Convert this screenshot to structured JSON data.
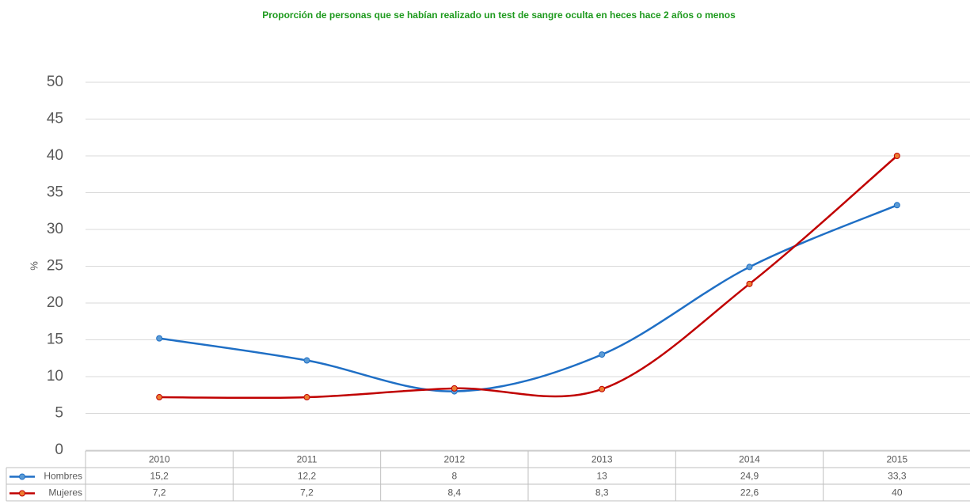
{
  "chart_data": {
    "type": "line",
    "title": "Proporción de personas que se habían realizado un test de sangre oculta en heces hace 2 años o menos",
    "y_label": "%",
    "categories": [
      "2010",
      "2011",
      "2012",
      "2013",
      "2014",
      "2015"
    ],
    "series": [
      {
        "name": "Hombres",
        "color": "#1f6fc5",
        "marker_color": "#5b9bd5",
        "values": [
          15.2,
          12.2,
          8,
          13,
          24.9,
          33.3
        ],
        "value_labels": [
          "15,2",
          "12,2",
          "8",
          "13",
          "24,9",
          "33,3"
        ]
      },
      {
        "name": "Mujeres",
        "color": "#c00000",
        "marker_color": "#ed7d31",
        "values": [
          7.2,
          7.2,
          8.4,
          8.3,
          22.6,
          40
        ],
        "value_labels": [
          "7,2",
          "7,2",
          "8,4",
          "8,3",
          "22,6",
          "40"
        ]
      }
    ],
    "ylim": [
      0,
      50
    ],
    "yticks": [
      0,
      5,
      10,
      15,
      20,
      25,
      30,
      35,
      40,
      45,
      50
    ],
    "grid": true,
    "smooth": true
  }
}
